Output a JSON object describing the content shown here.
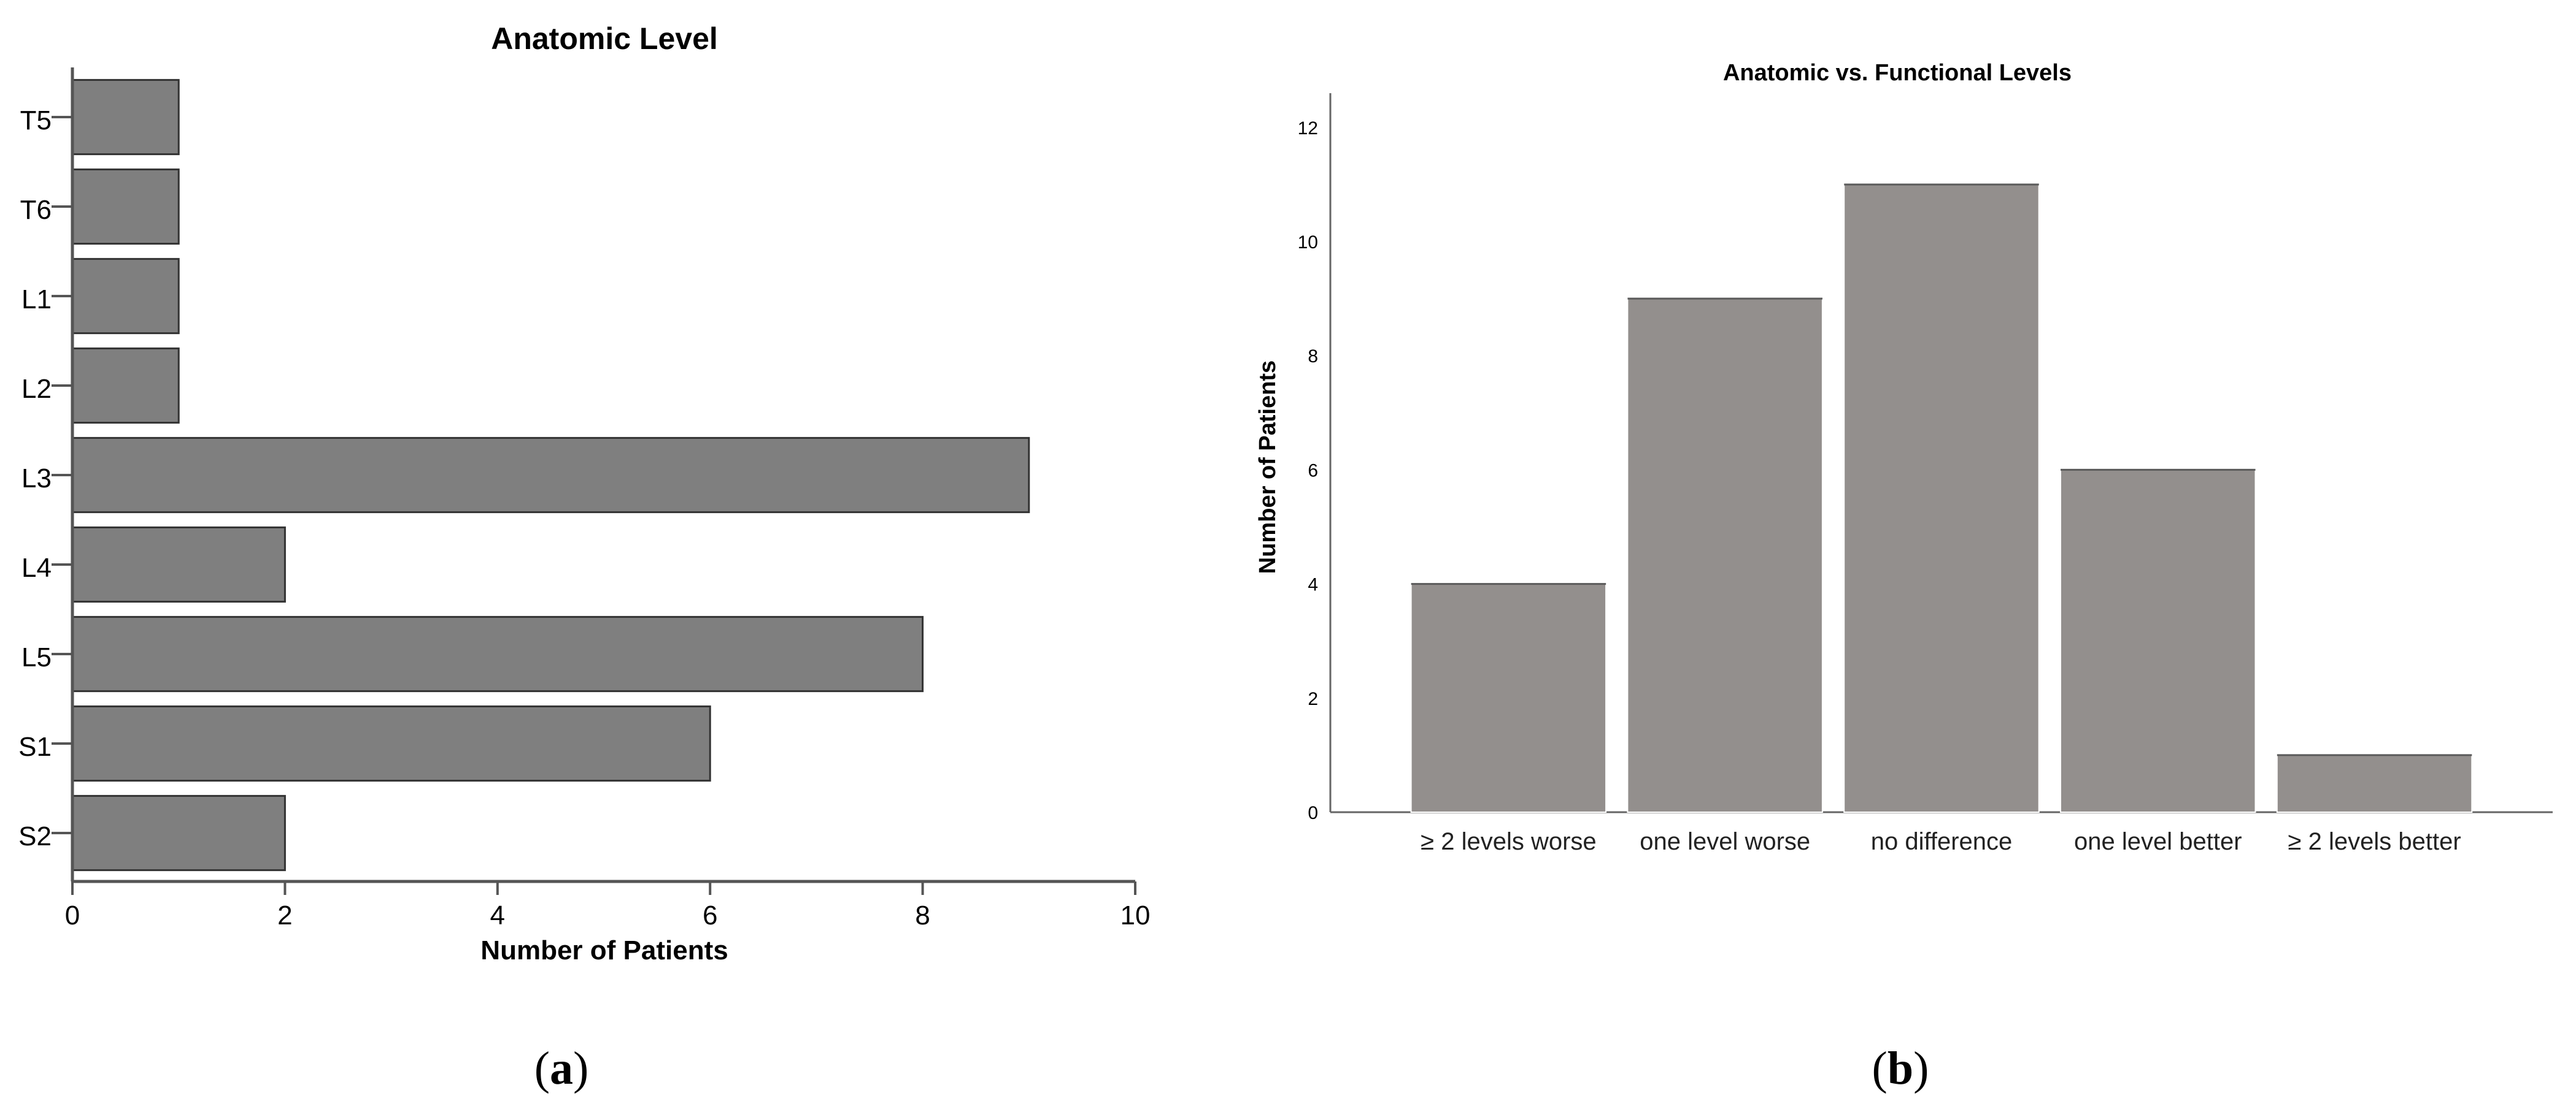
{
  "chart_data": [
    {
      "type": "bar",
      "orientation": "horizontal",
      "title": "Anatomic Level",
      "xlabel": "Number of Patients",
      "ylabel": "",
      "categories": [
        "T5",
        "T6",
        "L1",
        "L2",
        "L3",
        "L4",
        "L5",
        "S1",
        "S2"
      ],
      "values": [
        1,
        1,
        1,
        1,
        9,
        2,
        8,
        6,
        2
      ],
      "xlim": [
        0,
        10
      ],
      "xticks": [
        0,
        2,
        4,
        6,
        8,
        10
      ],
      "grid": false,
      "legend": "none",
      "bar_color": "#7f7f7f",
      "panel_label": "a"
    },
    {
      "type": "bar",
      "orientation": "vertical",
      "title": "Anatomic vs. Functional Levels",
      "xlabel": "",
      "ylabel": "Number of Patients",
      "categories": [
        "≥ 2 levels worse",
        "one level worse",
        "no difference",
        "one level better",
        "≥ 2 levels better"
      ],
      "values": [
        4,
        9,
        11,
        6,
        1
      ],
      "ylim": [
        0,
        12.6
      ],
      "yticks": [
        0,
        2,
        4,
        6,
        8,
        10,
        12
      ],
      "grid": false,
      "legend": "none",
      "bar_color": "#938f8d",
      "panel_label": "b"
    }
  ]
}
